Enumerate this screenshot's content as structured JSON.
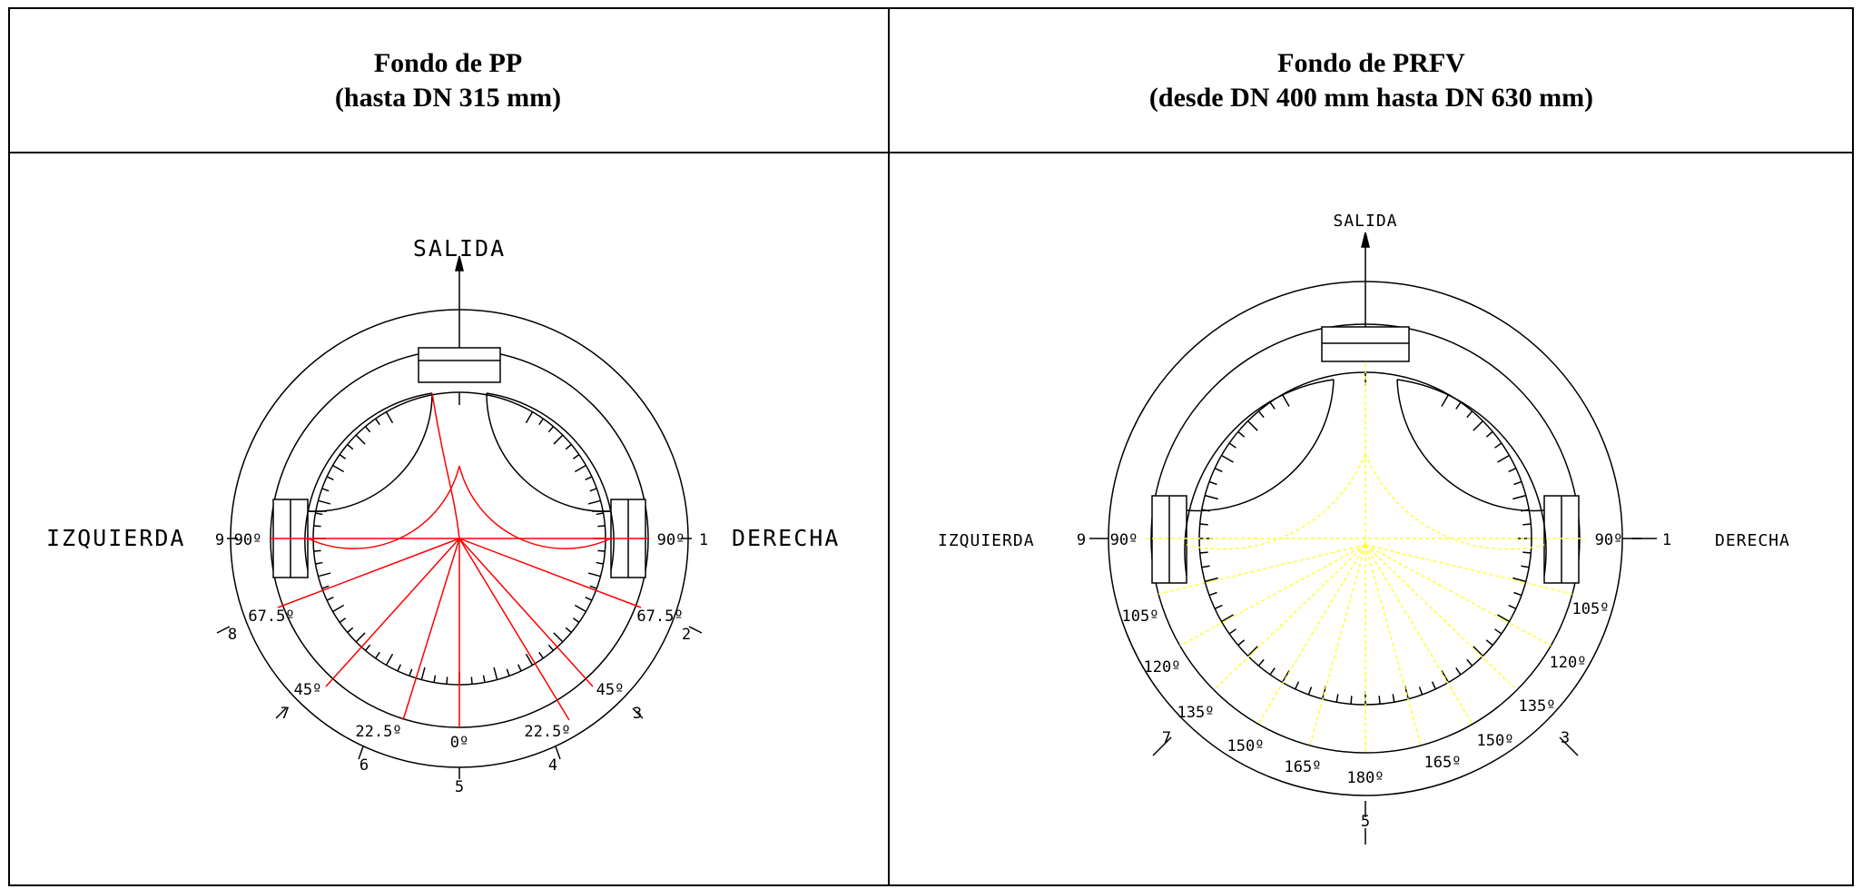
{
  "panels": [
    {
      "title": "Fondo de PP",
      "subtitle": "(hasta DN 315 mm)",
      "outlet_label": "SALIDA",
      "left_label": "IZQUIERDA",
      "right_label": "DERECHA",
      "line_color": "#ff0000",
      "angle_labels_left": [
        "90º",
        "67.5º",
        "45º",
        "22.5º"
      ],
      "angle_labels_right": [
        "90º",
        "67.5º",
        "45º",
        "22.5º"
      ],
      "angle_label_bottom": "0º",
      "positions": [
        "1",
        "2",
        "3",
        "4",
        "5",
        "6",
        "7",
        "8",
        "9"
      ]
    },
    {
      "title": "Fondo de PRFV",
      "subtitle": "(desde DN 400 mm hasta DN 630 mm)",
      "outlet_label": "SALIDA",
      "left_label": "IZQUIERDA",
      "right_label": "DERECHA",
      "line_color": "#ffff33",
      "angle_labels_left": [
        "90º",
        "105º",
        "120º",
        "135º",
        "150º",
        "165º"
      ],
      "angle_labels_right": [
        "90º",
        "105º",
        "120º",
        "135º",
        "150º",
        "165º"
      ],
      "angle_label_bottom": "180º",
      "positions": [
        "1",
        "3",
        "5",
        "7",
        "9"
      ]
    }
  ]
}
